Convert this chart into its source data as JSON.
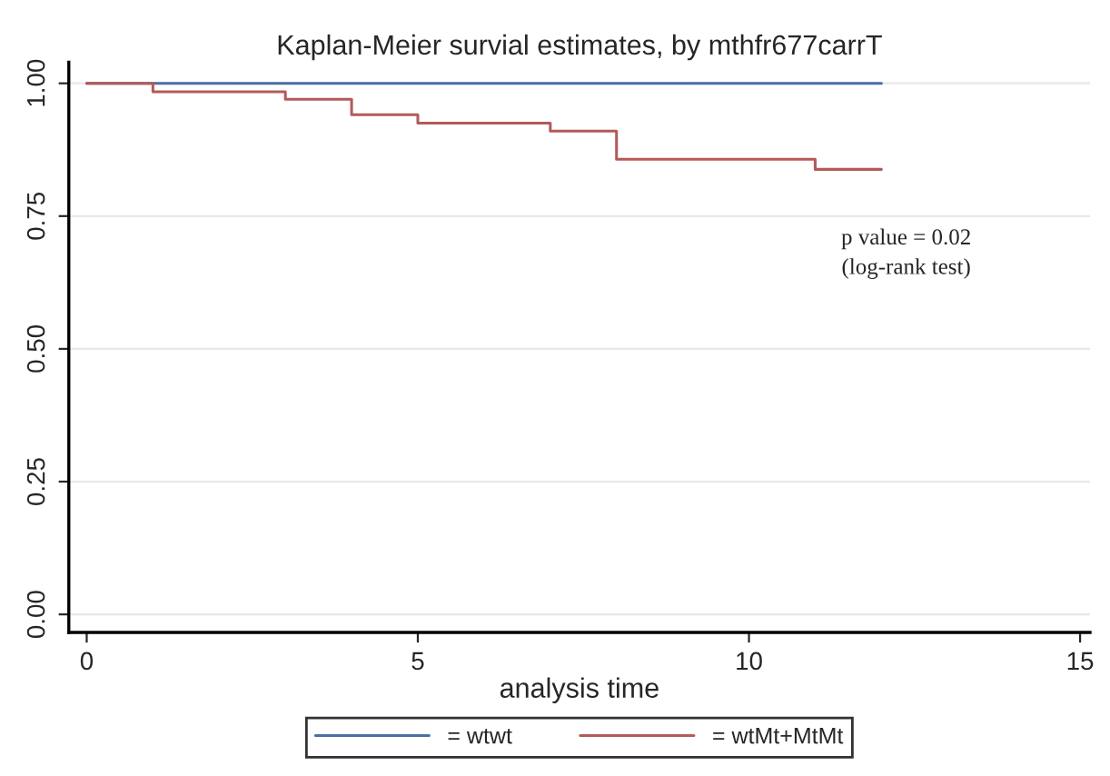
{
  "chart_data": {
    "type": "step",
    "title": "Kaplan-Meier survial estimates, by mthfr677carrT",
    "xlabel": "analysis time",
    "series": [
      {
        "name": "= wtwt",
        "color": "#4a6fa5",
        "x": [
          0,
          12
        ],
        "values": [
          1.0,
          1.0
        ]
      },
      {
        "name": "= wtMt+MtMt",
        "color": "#b45a5a",
        "x": [
          0,
          1,
          3,
          4,
          5,
          7,
          8,
          11,
          12
        ],
        "values": [
          1.0,
          0.984,
          0.97,
          0.941,
          0.925,
          0.91,
          0.857,
          0.838,
          0.838
        ]
      }
    ],
    "xlim": [
      -0.27,
      15.15
    ],
    "ylim": [
      -0.034,
      1.04
    ],
    "xticks": [
      0,
      5,
      10,
      15
    ],
    "yticks": [
      {
        "value": 0,
        "label": "0.00"
      },
      {
        "value": 0.25,
        "label": "0.25"
      },
      {
        "value": 0.5,
        "label": "0.50"
      },
      {
        "value": 0.75,
        "label": "0.75"
      },
      {
        "value": 1,
        "label": "1.00"
      }
    ],
    "grid": "y",
    "legend": "bottom",
    "line_style": "solid",
    "annotations": [
      "p value = 0.02",
      "(log-rank test)"
    ]
  }
}
